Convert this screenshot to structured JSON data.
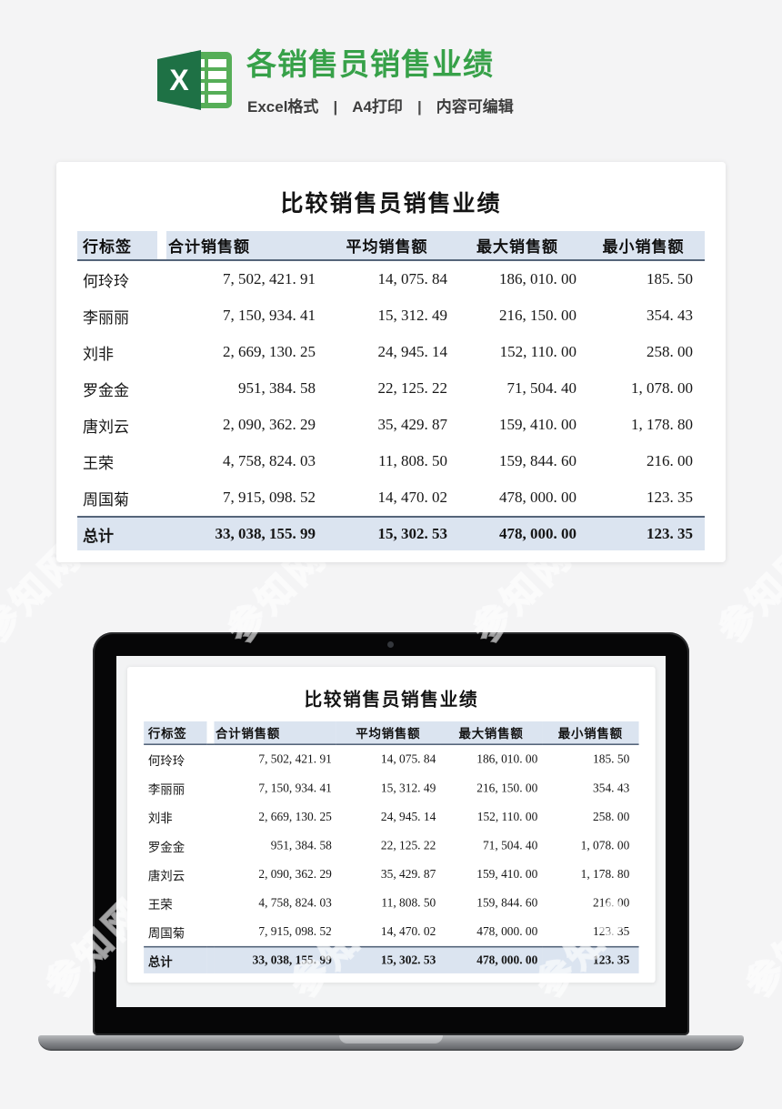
{
  "page": {
    "watermark_text": "参知网"
  },
  "header": {
    "title": "各销售员销售业绩",
    "subtitle_items": [
      "Excel格式",
      "A4打印",
      "内容可编辑"
    ],
    "separator": "|",
    "excel_icon_letter": "X",
    "title_color": "#37a149",
    "excel_dark_green": "#1e7145",
    "excel_light_green": "#56ae58"
  },
  "table": {
    "title": "比较销售员销售业绩",
    "columns": [
      "行标签",
      "合计销售额",
      "平均销售额",
      "最大销售额",
      "最小销售额"
    ],
    "rows": [
      {
        "name": "何玲玲",
        "values": [
          "7, 502, 421. 91",
          "14, 075. 84",
          "186, 010. 00",
          "185. 50"
        ]
      },
      {
        "name": "李丽丽",
        "values": [
          "7, 150, 934. 41",
          "15, 312. 49",
          "216, 150. 00",
          "354. 43"
        ]
      },
      {
        "name": "刘非",
        "values": [
          "2, 669, 130. 25",
          "24, 945. 14",
          "152, 110. 00",
          "258. 00"
        ]
      },
      {
        "name": "罗金金",
        "values": [
          "951, 384. 58",
          "22, 125. 22",
          "71, 504. 40",
          "1, 078. 00"
        ]
      },
      {
        "name": "唐刘云",
        "values": [
          "2, 090, 362. 29",
          "35, 429. 87",
          "159, 410. 00",
          "1, 178. 80"
        ]
      },
      {
        "name": "王荣",
        "values": [
          "4, 758, 824. 03",
          "11, 808. 50",
          "159, 844. 60",
          "216. 00"
        ]
      },
      {
        "name": "周国菊",
        "values": [
          "7, 915, 098. 52",
          "14, 470. 02",
          "478, 000. 00",
          "123. 35"
        ]
      },
      {
        "name": "总计",
        "values": [
          "33, 038, 155. 99",
          "15, 302. 53",
          "478, 000. 00",
          "123. 35"
        ],
        "total": true
      }
    ],
    "header_bg": "#dbe4f0",
    "border_color": "#55657a"
  }
}
